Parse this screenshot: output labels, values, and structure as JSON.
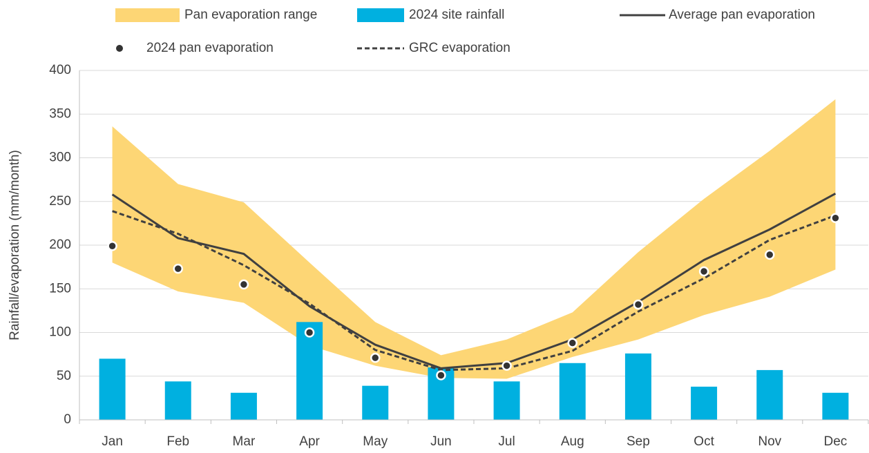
{
  "chart_data": {
    "type": "combo",
    "y_label": "Rainfall/evaporation  (mm/month)",
    "categories": [
      "Jan",
      "Feb",
      "Mar",
      "Apr",
      "May",
      "Jun",
      "Jul",
      "Aug",
      "Sep",
      "Oct",
      "Nov",
      "Dec"
    ],
    "ylim": [
      0,
      400
    ],
    "yticks": [
      0,
      50,
      100,
      150,
      200,
      250,
      300,
      350,
      400
    ],
    "grid": true,
    "legend": "top",
    "series": [
      {
        "name": "Pan evaporation range",
        "type": "range",
        "color": "#FDD675",
        "low": [
          180,
          147,
          134,
          85,
          62,
          48,
          47,
          72,
          92,
          120,
          141,
          172
        ],
        "high": [
          336,
          270,
          249,
          180,
          112,
          74,
          92,
          123,
          192,
          253,
          308,
          367
        ]
      },
      {
        "name": "2024 site rainfall",
        "type": "bar",
        "color": "#00B0E0",
        "values": [
          70,
          44,
          31,
          112,
          39,
          60,
          44,
          65,
          76,
          38,
          57,
          31
        ]
      },
      {
        "name": "Average pan evaporation",
        "type": "line",
        "color": "#404040",
        "dashed": false,
        "values": [
          258,
          208,
          190,
          130,
          86,
          59,
          65,
          92,
          135,
          183,
          218,
          259
        ]
      },
      {
        "name": "2024 pan evaporation",
        "type": "scatter",
        "color": "#333333",
        "values": [
          199,
          173,
          155,
          100,
          71,
          51,
          62,
          88,
          132,
          170,
          189,
          231
        ]
      },
      {
        "name": "GRC evaporation",
        "type": "line",
        "color": "#404040",
        "dashed": true,
        "values": [
          239,
          213,
          177,
          133,
          80,
          57,
          59,
          79,
          124,
          162,
          206,
          234
        ]
      }
    ]
  }
}
